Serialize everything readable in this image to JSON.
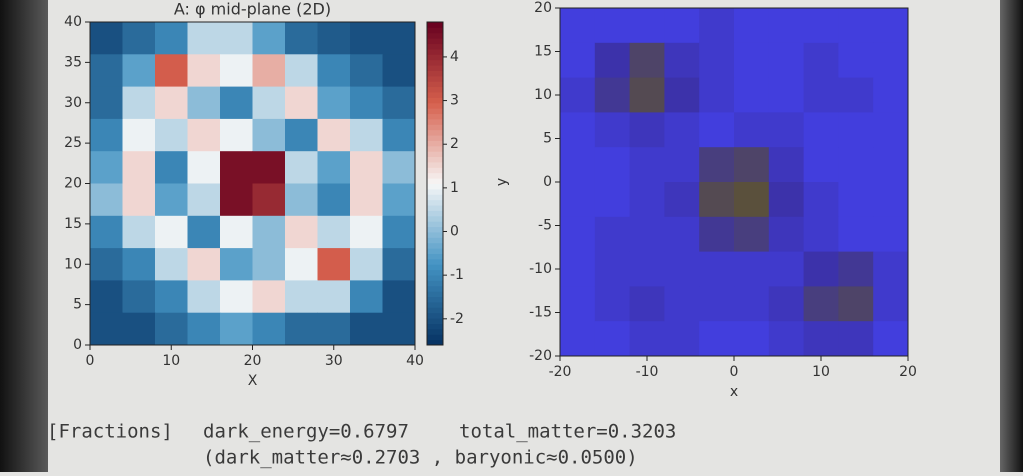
{
  "chart_data": [
    {
      "type": "heatmap",
      "title": "A: φ mid-plane (2D)",
      "x_label": "X",
      "colormap": "RdBu_r",
      "xlim": [
        0,
        40
      ],
      "ylim": [
        0,
        40
      ],
      "xticks": [
        0,
        10,
        20,
        30,
        40
      ],
      "yticks": [
        0,
        5,
        10,
        15,
        20,
        25,
        30,
        35,
        40
      ],
      "clim": [
        -2.6,
        4.8
      ],
      "cticks": [
        -2,
        -1,
        0,
        1,
        2,
        3,
        4
      ],
      "z": [
        [
          -2,
          -1.5,
          -1,
          0.5,
          0.5,
          -0.5,
          -1.5,
          -1.8,
          -2,
          -2
        ],
        [
          -1.5,
          -0.5,
          3,
          1.5,
          1,
          2,
          0.5,
          -1,
          -1.5,
          -2
        ],
        [
          -1.5,
          0.5,
          1.5,
          0,
          -1,
          0.5,
          1.5,
          -0.5,
          -1,
          -1.5
        ],
        [
          -1,
          1,
          0.5,
          1.5,
          1,
          0,
          -1,
          1.5,
          0.5,
          -1
        ],
        [
          -0.5,
          1.5,
          -1,
          1,
          4.5,
          4.5,
          0.5,
          -0.5,
          1.5,
          0
        ],
        [
          0,
          1.5,
          -0.5,
          0.5,
          4.5,
          4,
          0,
          -1,
          1.5,
          -0.5
        ],
        [
          -1,
          0.5,
          1,
          -1,
          1,
          0,
          1.5,
          0.5,
          1,
          -1
        ],
        [
          -1.5,
          -1,
          0.5,
          1.5,
          -0.5,
          0,
          1,
          3,
          0.5,
          -1.5
        ],
        [
          -2,
          -1.5,
          -1,
          0.5,
          1,
          1.5,
          0.5,
          0.5,
          -1,
          -2
        ],
        [
          -2,
          -2,
          -1.5,
          -1,
          -0.5,
          -1,
          -1.5,
          -1.5,
          -2,
          -2
        ]
      ]
    },
    {
      "type": "heatmap",
      "x_label": "x",
      "y_label": "y",
      "colormap": "blue-yellow",
      "xlim": [
        -20,
        20
      ],
      "ylim": [
        -20,
        20
      ],
      "xticks": [
        -20,
        -10,
        0,
        10,
        20
      ],
      "yticks": [
        -20,
        -15,
        -10,
        -5,
        0,
        5,
        10,
        15,
        20
      ],
      "clim": [
        0,
        1
      ],
      "z": [
        [
          0.2,
          0.2,
          0.2,
          0.2,
          0.3,
          0.2,
          0.2,
          0.2,
          0.2,
          0.2
        ],
        [
          0.2,
          0.5,
          0.8,
          0.4,
          0.3,
          0.2,
          0.2,
          0.3,
          0.2,
          0.2
        ],
        [
          0.3,
          0.6,
          0.9,
          0.5,
          0.3,
          0.2,
          0.2,
          0.3,
          0.3,
          0.2
        ],
        [
          0.2,
          0.3,
          0.4,
          0.3,
          0.2,
          0.3,
          0.3,
          0.2,
          0.2,
          0.2
        ],
        [
          0.2,
          0.2,
          0.3,
          0.3,
          0.7,
          0.8,
          0.4,
          0.2,
          0.2,
          0.2
        ],
        [
          0.2,
          0.2,
          0.3,
          0.4,
          0.9,
          1,
          0.5,
          0.3,
          0.2,
          0.2
        ],
        [
          0.2,
          0.3,
          0.3,
          0.3,
          0.6,
          0.7,
          0.4,
          0.3,
          0.2,
          0.2
        ],
        [
          0.2,
          0.3,
          0.3,
          0.3,
          0.3,
          0.3,
          0.3,
          0.5,
          0.6,
          0.3
        ],
        [
          0.2,
          0.3,
          0.4,
          0.3,
          0.3,
          0.3,
          0.4,
          0.7,
          0.8,
          0.3
        ],
        [
          0.2,
          0.2,
          0.3,
          0.3,
          0.2,
          0.2,
          0.3,
          0.4,
          0.4,
          0.2
        ]
      ]
    }
  ],
  "footer": {
    "label": "[Fractions]",
    "dark_energy": "dark_energy=0.6797",
    "total_matter": "total_matter=0.3203",
    "detail": "(dark_matter≈0.2703 , baryonic≈0.0500)"
  }
}
